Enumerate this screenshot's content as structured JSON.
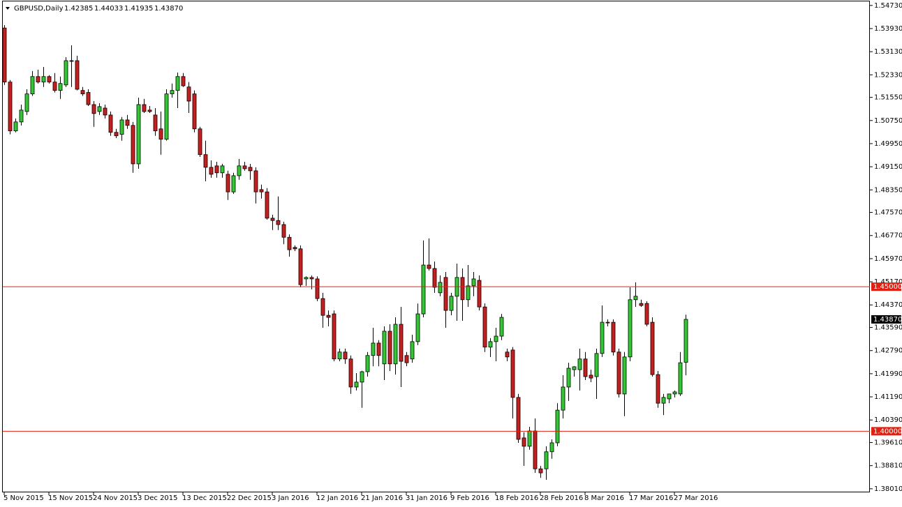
{
  "chart_data": {
    "type": "candlestick",
    "title": "GBPUSD,Daily",
    "header_ohlc": {
      "values": [
        1.42385,
        1.44033,
        1.41935,
        1.4387
      ],
      "value_labels": [
        "1.42385",
        "1.44033",
        "1.41935",
        "1.43870"
      ]
    },
    "categories": [
      "5 Nov 2015",
      null,
      null,
      null,
      null,
      null,
      null,
      null,
      "15 Nov 2015",
      null,
      null,
      null,
      null,
      null,
      null,
      null,
      "24 Nov 2015",
      null,
      null,
      null,
      null,
      null,
      null,
      null,
      "3 Dec 2015",
      null,
      null,
      null,
      null,
      null,
      null,
      null,
      "13 Dec 2015",
      null,
      null,
      null,
      null,
      null,
      null,
      null,
      "22 Dec 2015",
      null,
      null,
      null,
      null,
      null,
      null,
      null,
      "3 Jan 2016",
      null,
      null,
      null,
      null,
      null,
      null,
      null,
      "12 Jan 2016",
      null,
      null,
      null,
      null,
      null,
      null,
      null,
      "21 Jan 2016",
      null,
      null,
      null,
      null,
      null,
      null,
      null,
      "31 Jan 2016",
      null,
      null,
      null,
      null,
      null,
      null,
      null,
      "9 Feb 2016",
      null,
      null,
      null,
      null,
      null,
      null,
      null,
      "18 Feb 2016",
      null,
      null,
      null,
      null,
      null,
      null,
      null,
      "28 Feb 2016",
      null,
      null,
      null,
      null,
      null,
      null,
      null,
      "8 Mar 2016",
      null,
      null,
      null,
      null,
      null,
      null,
      null,
      "17 Mar 2016",
      null,
      null,
      null,
      null,
      null,
      null,
      null,
      "27 Mar 2016",
      null,
      null
    ],
    "open": [
      1.5395,
      1.5208,
      1.5039,
      1.507,
      1.5106,
      1.5167,
      1.5227,
      1.5208,
      1.5227,
      1.5208,
      1.5179,
      1.5198,
      1.5282,
      1.5282,
      1.5179,
      1.5172,
      1.513,
      1.5106,
      1.5118,
      1.5094,
      1.5034,
      1.5027,
      1.5077,
      1.5058,
      1.4925,
      1.513,
      1.5111,
      1.5094,
      1.5046,
      1.501,
      1.5167,
      1.5179,
      1.5227,
      1.5191,
      1.5167,
      1.5046,
      1.4957,
      1.4913,
      1.4918,
      1.4894,
      1.4889,
      1.4828,
      1.4884,
      1.4918,
      1.4913,
      1.4901,
      1.4836,
      1.4828,
      1.4737,
      1.4729,
      1.4715,
      1.4671,
      1.4636,
      1.4631,
      1.4527,
      1.4532,
      1.4527,
      1.4459,
      1.4401,
      1.4406,
      1.425,
      1.4274,
      1.425,
      1.4153,
      1.417,
      1.4206,
      1.4262,
      1.4305,
      1.4233,
      1.4346,
      1.4233,
      1.437,
      1.4262,
      1.425,
      1.431,
      1.4406,
      1.4575,
      1.4563,
      1.4479,
      1.4532,
      1.4418,
      1.4467,
      1.4532,
      1.4455,
      1.4503,
      1.4522,
      1.443,
      1.4291,
      1.431,
      1.4329,
      1.4274,
      1.4281,
      1.4117,
      1.3977,
      1.3948,
      1.4001,
      1.387,
      1.387,
      1.3929,
      1.396,
      1.4073,
      1.4153,
      1.4213,
      1.4213,
      1.425,
      1.4194,
      1.4189,
      1.4269,
      1.4377,
      1.4377,
      1.4274,
      1.4129,
      1.4257,
      1.4455,
      1.4442,
      1.4442,
      1.4377,
      1.4196,
      1.4097,
      1.4112,
      1.4129,
      1.4129,
      1.42385
    ],
    "high": [
      1.5405,
      1.5215,
      1.5082,
      1.513,
      1.5183,
      1.5246,
      1.5251,
      1.526,
      1.5232,
      1.5239,
      1.5227,
      1.5294,
      1.5335,
      1.5299,
      1.5191,
      1.5183,
      1.5142,
      1.5135,
      1.513,
      1.5106,
      1.5046,
      1.5087,
      1.5094,
      1.507,
      1.5154,
      1.515,
      1.5125,
      1.5118,
      1.5106,
      1.5183,
      1.5203,
      1.5241,
      1.5239,
      1.5208,
      1.5179,
      1.5053,
      1.5005,
      1.4937,
      1.4932,
      1.4925,
      1.4901,
      1.4894,
      1.4942,
      1.4932,
      1.4925,
      1.4913,
      1.4853,
      1.4841,
      1.4749,
      1.4812,
      1.4725,
      1.4681,
      1.4643,
      1.4643,
      1.4536,
      1.4539,
      1.4536,
      1.4479,
      1.4418,
      1.4418,
      1.4286,
      1.4286,
      1.4262,
      1.4201,
      1.4209,
      1.4274,
      1.4358,
      1.4315,
      1.4363,
      1.437,
      1.4394,
      1.443,
      1.4274,
      1.4334,
      1.4442,
      1.466,
      1.4667,
      1.4587,
      1.4539,
      1.4551,
      1.4479,
      1.458,
      1.4563,
      1.4575,
      1.4551,
      1.4539,
      1.4442,
      1.4322,
      1.4358,
      1.4406,
      1.4286,
      1.4291,
      1.4129,
      1.3996,
      1.4015,
      1.4044,
      1.388,
      1.3948,
      1.3972,
      1.4097,
      1.4194,
      1.4237,
      1.4225,
      1.4286,
      1.4274,
      1.4213,
      1.4286,
      1.4435,
      1.4387,
      1.4387,
      1.4286,
      1.4274,
      1.4498,
      1.4515,
      1.4455,
      1.445,
      1.4394,
      1.4208,
      1.4129,
      1.4129,
      1.4141,
      1.4274,
      1.44033
    ],
    "low": [
      1.5198,
      1.5027,
      1.5034,
      1.5058,
      1.5094,
      1.516,
      1.5203,
      1.5191,
      1.5203,
      1.5172,
      1.515,
      1.5191,
      1.5191,
      1.5179,
      1.516,
      1.5125,
      1.5053,
      1.5094,
      1.5082,
      1.5022,
      1.5014,
      1.5005,
      1.5046,
      1.4894,
      1.4908,
      1.5101,
      1.5101,
      1.5022,
      1.4957,
      1.5005,
      1.5154,
      1.5118,
      1.5191,
      1.5101,
      1.5034,
      1.4949,
      1.4865,
      1.4877,
      1.4877,
      1.4877,
      1.48,
      1.4821,
      1.487,
      1.4901,
      1.487,
      1.4788,
      1.4805,
      1.4732,
      1.4696,
      1.4696,
      1.4647,
      1.4604,
      1.4623,
      1.4498,
      1.4503,
      1.4491,
      1.445,
      1.4358,
      1.4363,
      1.4242,
      1.4242,
      1.4233,
      1.4129,
      1.4141,
      1.4081,
      1.4189,
      1.4225,
      1.4225,
      1.4177,
      1.4208,
      1.4196,
      1.4153,
      1.4225,
      1.4237,
      1.4298,
      1.4394,
      1.4556,
      1.4479,
      1.4467,
      1.4358,
      1.4401,
      1.4382,
      1.4382,
      1.443,
      1.4467,
      1.4418,
      1.4274,
      1.4257,
      1.4242,
      1.4315,
      1.4242,
      1.4044,
      1.396,
      1.388,
      1.3936,
      1.3856,
      1.3839,
      1.3832,
      1.3905,
      1.3948,
      1.4044,
      1.4105,
      1.4189,
      1.4141,
      1.4177,
      1.417,
      1.4112,
      1.4257,
      1.4363,
      1.4262,
      1.4117,
      1.4052,
      1.4242,
      1.443,
      1.443,
      1.4363,
      1.4189,
      1.4081,
      1.4056,
      1.4097,
      1.4117,
      1.4122,
      1.41935
    ],
    "close": [
      1.5208,
      1.5039,
      1.507,
      1.5111,
      1.5167,
      1.5227,
      1.5208,
      1.5227,
      1.5208,
      1.5179,
      1.5203,
      1.5282,
      1.528,
      1.5183,
      1.5167,
      1.513,
      1.5099,
      1.5123,
      1.5094,
      1.5034,
      1.5022,
      1.5077,
      1.5058,
      1.4925,
      1.513,
      1.5106,
      1.5106,
      1.5039,
      1.501,
      1.5167,
      1.5179,
      1.5227,
      1.5195,
      1.5142,
      1.5046,
      1.4957,
      1.4913,
      1.4889,
      1.4894,
      1.4918,
      1.4828,
      1.4884,
      1.4918,
      1.4908,
      1.4901,
      1.4828,
      1.4828,
      1.4737,
      1.4729,
      1.4715,
      1.4671,
      1.4628,
      1.4631,
      1.4507,
      1.4532,
      1.4527,
      1.4459,
      1.4401,
      1.4394,
      1.425,
      1.4274,
      1.425,
      1.4153,
      1.417,
      1.4206,
      1.4262,
      1.4305,
      1.4262,
      1.4346,
      1.4233,
      1.437,
      1.4242,
      1.4237,
      1.431,
      1.4406,
      1.4575,
      1.4563,
      1.4498,
      1.4515,
      1.4418,
      1.4467,
      1.4532,
      1.4455,
      1.4503,
      1.4527,
      1.443,
      1.4291,
      1.431,
      1.4329,
      1.4394,
      1.4257,
      1.4117,
      1.3972,
      1.3948,
      1.4001,
      1.387,
      1.3856,
      1.3929,
      1.396,
      1.4073,
      1.4153,
      1.4218,
      1.4223,
      1.425,
      1.4189,
      1.4184,
      1.4269,
      1.4377,
      1.4375,
      1.4274,
      1.4129,
      1.4257,
      1.4455,
      1.4467,
      1.4435,
      1.437,
      1.4196,
      1.4097,
      1.4117,
      1.4129,
      1.4136,
      1.4237,
      1.4387
    ],
    "up_color": "#32c832",
    "down_color": "#c81e1e",
    "ylim": [
      1.3791,
      1.5487
    ],
    "yticks": [
      {
        "value": 1.5473,
        "label": "1.54730"
      },
      {
        "value": 1.5393,
        "label": "1.53930"
      },
      {
        "value": 1.5313,
        "label": "1.53130"
      },
      {
        "value": 1.5233,
        "label": "1.52330"
      },
      {
        "value": 1.5155,
        "label": "1.51550"
      },
      {
        "value": 1.5075,
        "label": "1.50750"
      },
      {
        "value": 1.4995,
        "label": "1.49950"
      },
      {
        "value": 1.4915,
        "label": "1.49150"
      },
      {
        "value": 1.4835,
        "label": "1.48350"
      },
      {
        "value": 1.4757,
        "label": "1.47570"
      },
      {
        "value": 1.4677,
        "label": "1.46770"
      },
      {
        "value": 1.4597,
        "label": "1.45970"
      },
      {
        "value": 1.4517,
        "label": "1.45170"
      },
      {
        "value": 1.4437,
        "label": "1.44370"
      },
      {
        "value": 1.4359,
        "label": "1.43590"
      },
      {
        "value": 1.4279,
        "label": "1.42790"
      },
      {
        "value": 1.4199,
        "label": "1.41990"
      },
      {
        "value": 1.4119,
        "label": "1.41190"
      },
      {
        "value": 1.4039,
        "label": "1.40390"
      },
      {
        "value": 1.3961,
        "label": "1.39610"
      },
      {
        "value": 1.3881,
        "label": "1.38810"
      },
      {
        "value": 1.3801,
        "label": "1.38010"
      }
    ],
    "hlines": [
      {
        "value": 1.45,
        "label": "1.45000"
      },
      {
        "value": 1.4,
        "label": "1.40000"
      }
    ],
    "hline_color": "#e02010",
    "last_price": {
      "value": 1.4387,
      "label": "1.43870"
    },
    "grid": false
  }
}
